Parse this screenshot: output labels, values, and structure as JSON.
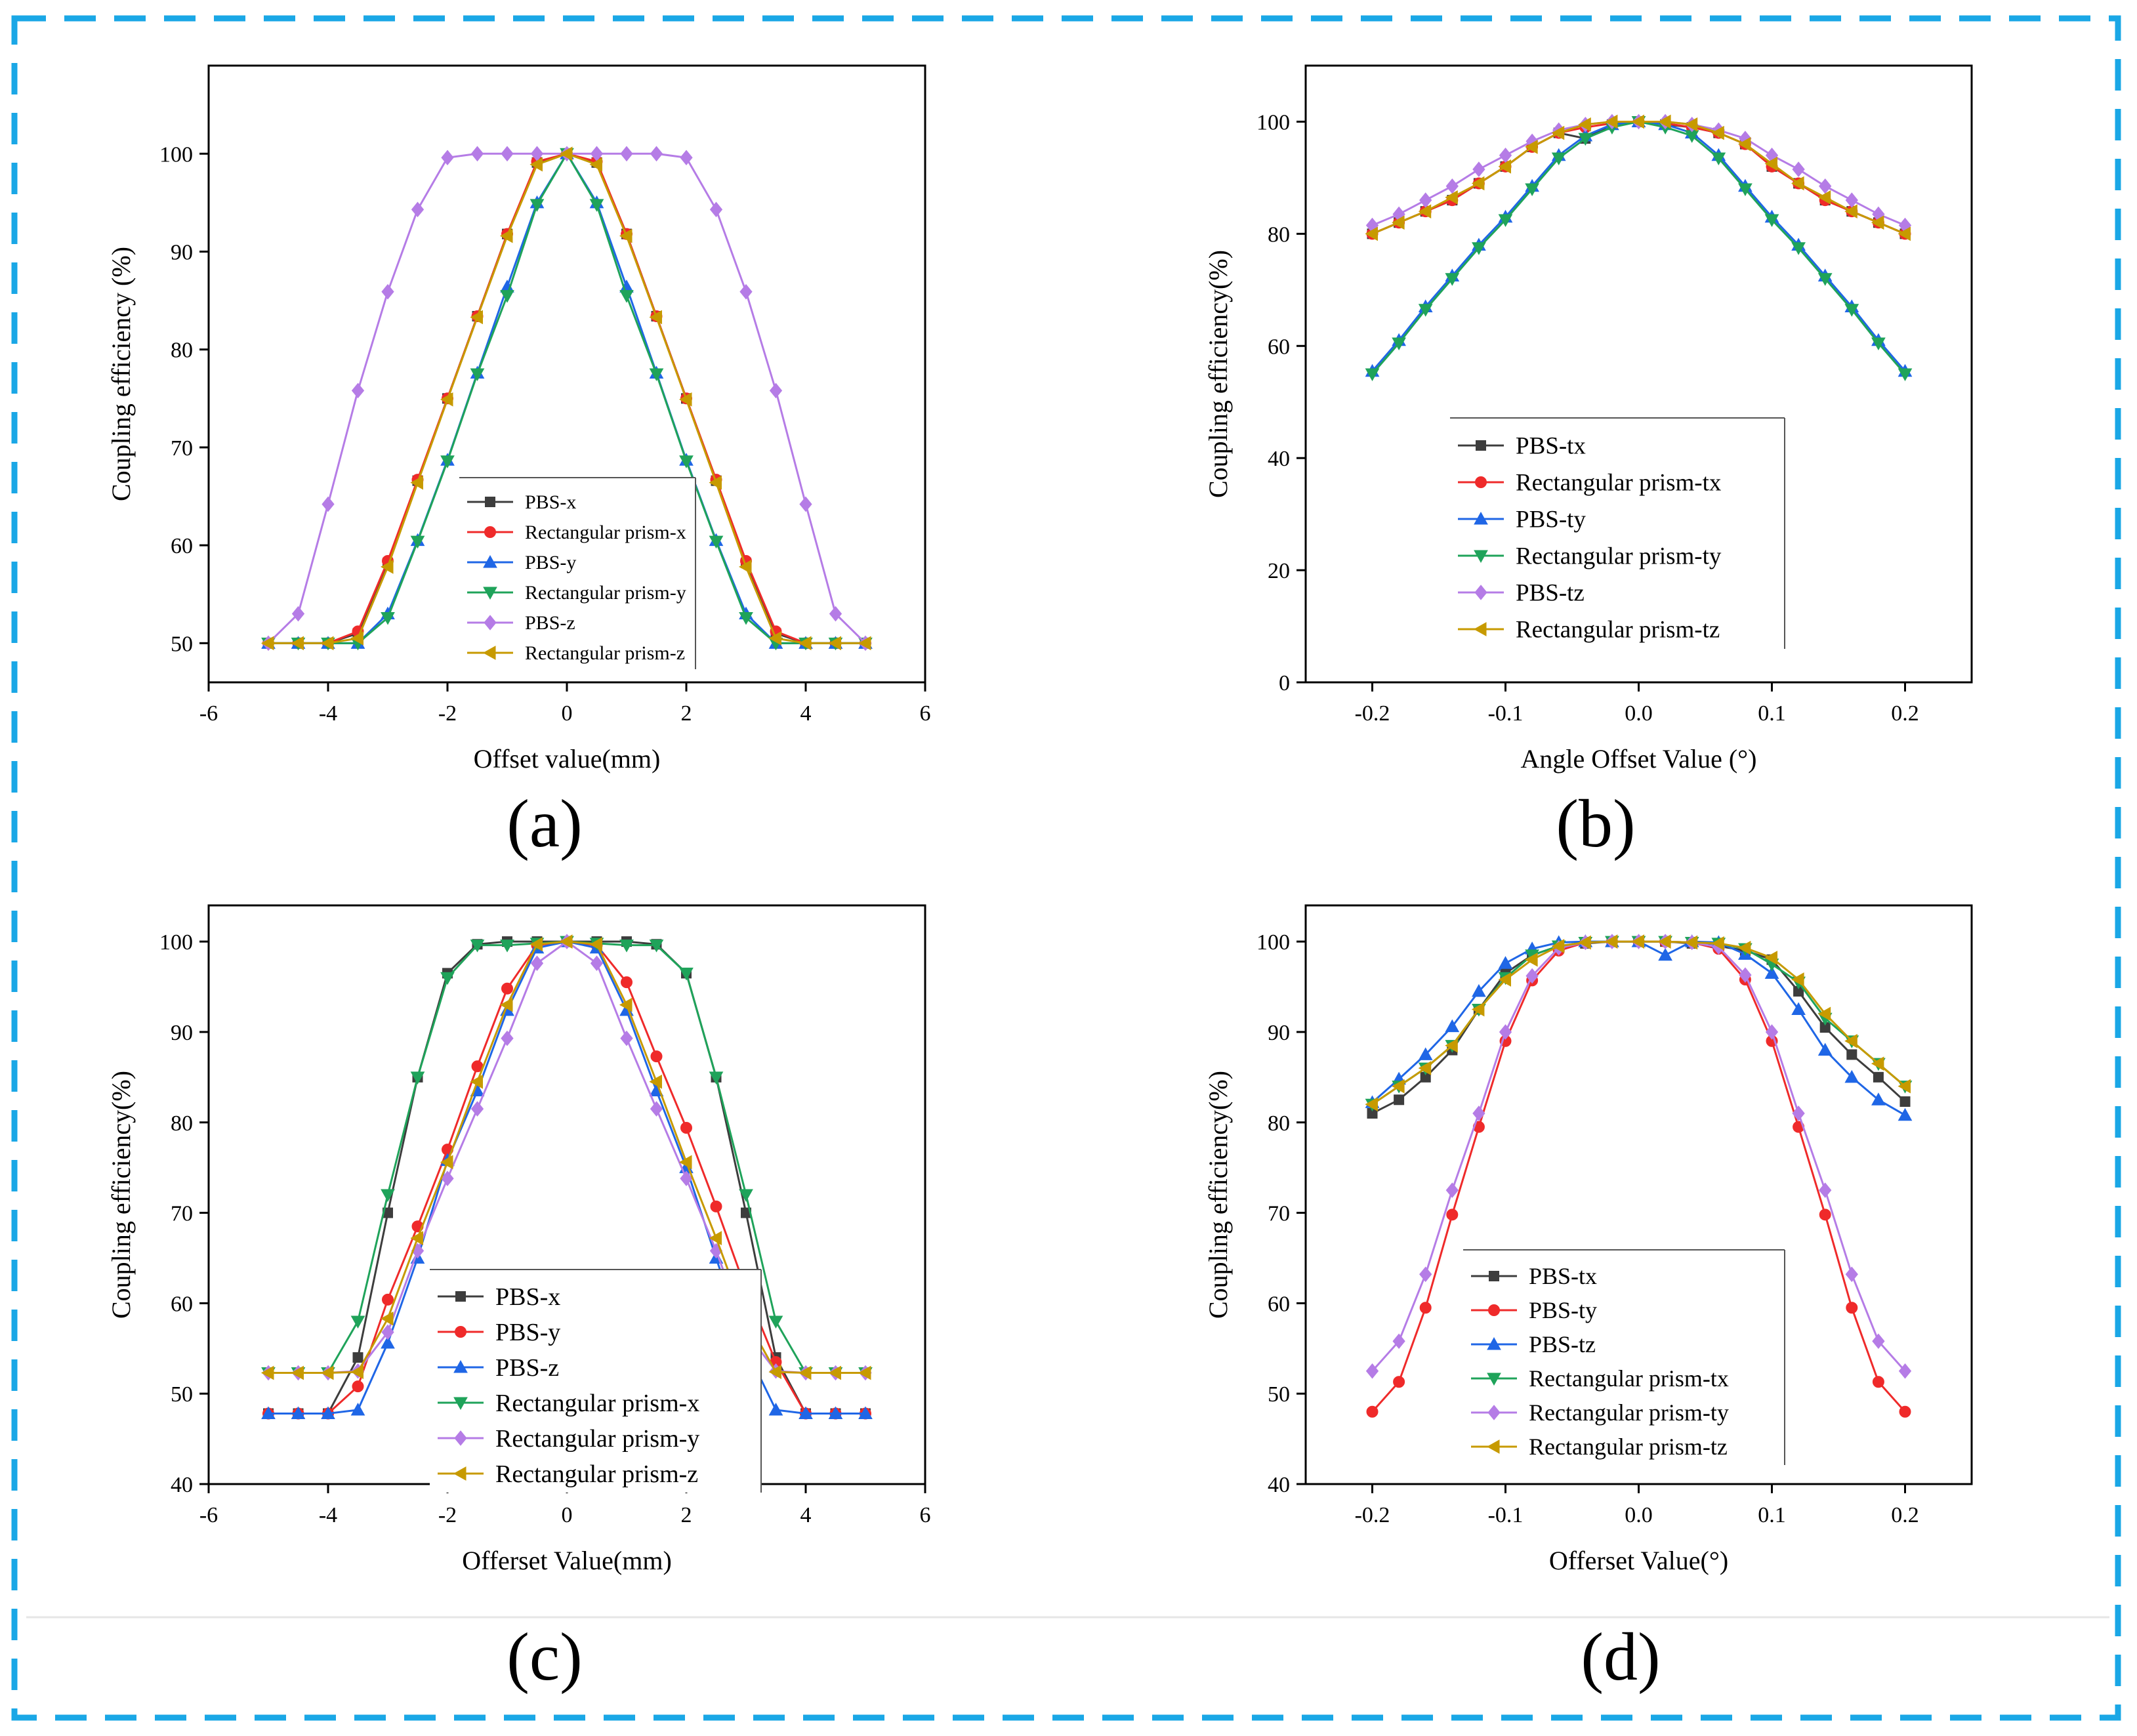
{
  "frame_color": "#1aa7e6",
  "series_colors": {
    "PBS-x": "#3d3d3d",
    "PBS-y": "#ef2a2a",
    "PBS-z": "#1f66e6",
    "Rect-x": "#1fa35a",
    "Rect-y": "#b57ce6",
    "Rect-z": "#c79a00"
  },
  "chart_data": [
    {
      "type": "line",
      "panel_label": "(a)",
      "xlabel": "Offset value(mm)",
      "ylabel": "Coupling efficiency (%)",
      "xlim": [
        -6,
        6
      ],
      "ylim": [
        46,
        109
      ],
      "xticks": [
        -6,
        -4,
        -2,
        0,
        2,
        4,
        6
      ],
      "yticks": [
        50,
        60,
        70,
        80,
        90,
        100
      ],
      "x": [
        -5,
        -4.5,
        -4,
        -3.5,
        -3,
        -2.5,
        -2,
        -1.5,
        -1,
        -0.5,
        0,
        0.5,
        1,
        1.5,
        2,
        2.5,
        3,
        3.5,
        4,
        4.5,
        5
      ],
      "legend": {
        "position": "lower-center",
        "font": 30
      },
      "series": [
        {
          "name": "PBS-x",
          "color": "#3d3d3d",
          "marker": "square",
          "values": [
            50,
            50,
            50,
            51,
            58.2,
            66.6,
            75,
            83.4,
            91.8,
            99.1,
            100,
            99.1,
            91.8,
            83.4,
            75,
            66.6,
            58.2,
            51,
            50,
            50,
            50
          ]
        },
        {
          "name": "Rectangular prism-x",
          "color": "#ef2a2a",
          "marker": "circle",
          "values": [
            50,
            50,
            50,
            51.2,
            58.4,
            66.7,
            75,
            83.4,
            91.8,
            99.2,
            100,
            99.2,
            91.8,
            83.4,
            75,
            66.7,
            58.4,
            51.2,
            50,
            50,
            50
          ]
        },
        {
          "name": "PBS-y",
          "color": "#1f66e6",
          "marker": "triangle-up",
          "values": [
            50,
            50,
            50,
            50,
            53,
            60.5,
            68.7,
            77.6,
            86.4,
            95,
            100,
            95,
            86.4,
            77.6,
            68.7,
            60.5,
            53,
            50,
            50,
            50,
            50
          ]
        },
        {
          "name": "Rectangular prism-y",
          "color": "#1fa35a",
          "marker": "triangle-down",
          "values": [
            50,
            50,
            50,
            50,
            52.6,
            60.4,
            68.6,
            77.5,
            85.5,
            94.8,
            100,
            94.8,
            85.5,
            77.5,
            68.6,
            60.4,
            52.6,
            50,
            50,
            50,
            50
          ]
        },
        {
          "name": "PBS-z",
          "color": "#b57ce6",
          "marker": "diamond",
          "values": [
            50,
            53,
            64.2,
            75.8,
            85.9,
            94.3,
            99.6,
            100,
            100,
            100,
            100,
            100,
            100,
            100,
            99.6,
            94.3,
            85.9,
            75.8,
            64.2,
            53,
            50
          ]
        },
        {
          "name": "Rectangular prism-z",
          "color": "#c79a00",
          "marker": "triangle-left",
          "values": [
            50,
            50,
            50,
            50.5,
            57.8,
            66.4,
            74.9,
            83.3,
            91.6,
            98.9,
            100,
            98.9,
            91.6,
            83.3,
            74.9,
            66.4,
            57.8,
            50.5,
            50,
            50,
            50
          ]
        }
      ]
    },
    {
      "type": "line",
      "panel_label": "(b)",
      "xlabel": "Angle Offset Value (°)",
      "ylabel": "Coupling efficiency(%)",
      "xlim": [
        -0.25,
        0.25
      ],
      "ylim": [
        0,
        110
      ],
      "xticks": [
        -0.2,
        -0.1,
        0.0,
        0.1,
        0.2
      ],
      "xtick_labels": [
        "-0.2",
        "-0.1",
        "0.0",
        "0.1",
        "0.2"
      ],
      "yticks": [
        0,
        20,
        40,
        60,
        80,
        100
      ],
      "x": [
        -0.2,
        -0.18,
        -0.16,
        -0.14,
        -0.12,
        -0.1,
        -0.08,
        -0.06,
        -0.04,
        -0.02,
        0,
        0.02,
        0.04,
        0.06,
        0.08,
        0.1,
        0.12,
        0.14,
        0.16,
        0.18,
        0.2
      ],
      "legend": {
        "position": "center",
        "font": 37
      },
      "series": [
        {
          "name": "PBS-tx",
          "color": "#3d3d3d",
          "marker": "square",
          "values": [
            80,
            82,
            84,
            86,
            89,
            92,
            95.5,
            98,
            97,
            99.5,
            100,
            99.5,
            99,
            98,
            96,
            92,
            89,
            86,
            84,
            82,
            80
          ]
        },
        {
          "name": "Rectangular prism-tx",
          "color": "#ef2a2a",
          "marker": "circle",
          "values": [
            80,
            82,
            84,
            86,
            89,
            92,
            95.5,
            98,
            99,
            99.7,
            100,
            99.7,
            99,
            98,
            96,
            92,
            89,
            86,
            84,
            82,
            80
          ]
        },
        {
          "name": "PBS-ty",
          "color": "#1f66e6",
          "marker": "triangle-up",
          "values": [
            55.5,
            61,
            67,
            72.5,
            78,
            83,
            88.5,
            94,
            97.5,
            99.5,
            100,
            99.5,
            98,
            94,
            88.5,
            83,
            78,
            72.5,
            67,
            61,
            55.5
          ]
        },
        {
          "name": "Rectangular prism-ty",
          "color": "#1fa35a",
          "marker": "triangle-down",
          "values": [
            55,
            60.5,
            66.5,
            72,
            77.5,
            82.5,
            88,
            93.5,
            97,
            99,
            100,
            99,
            97.5,
            93.5,
            88,
            82.5,
            77.5,
            72,
            66.5,
            60.5,
            55
          ]
        },
        {
          "name": "PBS-tz",
          "color": "#b57ce6",
          "marker": "diamond",
          "values": [
            81.5,
            83.5,
            86,
            88.5,
            91.5,
            94,
            96.5,
            98.5,
            99.5,
            100,
            100,
            100,
            99.5,
            98.5,
            97,
            94,
            91.5,
            88.5,
            86,
            83.5,
            81.5
          ]
        },
        {
          "name": "Rectangular prism-tz",
          "color": "#c79a00",
          "marker": "triangle-left",
          "values": [
            80,
            82,
            84,
            86.5,
            89,
            92,
            95.5,
            98,
            99.5,
            100,
            100,
            100,
            99.5,
            98,
            96,
            92.5,
            89,
            86.5,
            84,
            82,
            80
          ]
        }
      ]
    },
    {
      "type": "line",
      "panel_label": "(c)",
      "xlabel": "Offerset Value(mm)",
      "ylabel": "Coupling efficiency(%)",
      "xlim": [
        -6,
        6
      ],
      "ylim": [
        40,
        104
      ],
      "xticks": [
        -6,
        -4,
        -2,
        0,
        2,
        4,
        6
      ],
      "yticks": [
        40,
        50,
        60,
        70,
        80,
        90,
        100
      ],
      "x": [
        -5,
        -4.5,
        -4,
        -3.5,
        -3,
        -2.5,
        -2,
        -1.5,
        -1,
        -0.5,
        0,
        0.5,
        1,
        1.5,
        2,
        2.5,
        3,
        3.5,
        4,
        4.5,
        5
      ],
      "legend": {
        "position": "lower-center",
        "font": 38
      },
      "series": [
        {
          "name": "PBS-x",
          "color": "#3d3d3d",
          "marker": "square",
          "values": [
            47.8,
            47.8,
            47.8,
            54,
            70,
            85,
            96.5,
            99.7,
            100,
            100,
            100,
            100,
            100,
            99.7,
            96.5,
            85,
            70,
            54,
            47.8,
            47.8,
            47.8
          ]
        },
        {
          "name": "PBS-y",
          "color": "#ef2a2a",
          "marker": "circle",
          "values": [
            47.8,
            47.8,
            47.8,
            50.8,
            60.4,
            68.5,
            77,
            86.2,
            94.8,
            99.6,
            100,
            99.6,
            95.5,
            87.3,
            79.4,
            70.7,
            61.5,
            53.5,
            47.8,
            47.8,
            47.8
          ]
        },
        {
          "name": "PBS-z",
          "color": "#1f66e6",
          "marker": "triangle-up",
          "values": [
            47.8,
            47.8,
            47.8,
            48.2,
            55.6,
            65,
            75.8,
            83.5,
            92.4,
            99.3,
            100,
            99.3,
            92.4,
            83.5,
            75,
            65,
            55,
            48.2,
            47.8,
            47.8,
            47.8
          ]
        },
        {
          "name": "Rectangular prism-x",
          "color": "#1fa35a",
          "marker": "triangle-down",
          "values": [
            52.3,
            52.3,
            52.3,
            58,
            72,
            85,
            96,
            99.6,
            99.6,
            99.8,
            100,
            99.8,
            99.6,
            99.6,
            96.5,
            85,
            72,
            58,
            52.3,
            52.3,
            52.3
          ]
        },
        {
          "name": "Rectangular prism-y",
          "color": "#b57ce6",
          "marker": "diamond",
          "values": [
            52.3,
            52.3,
            52.3,
            52.5,
            56.8,
            65.8,
            73.8,
            81.5,
            89.3,
            97.6,
            100,
            97.6,
            89.3,
            81.5,
            73.8,
            65.8,
            56.8,
            52.5,
            52.3,
            52.3,
            52.3
          ]
        },
        {
          "name": "Rectangular prism-z",
          "color": "#c79a00",
          "marker": "triangle-left",
          "values": [
            52.3,
            52.3,
            52.3,
            52.4,
            58.3,
            67.2,
            75.6,
            84.5,
            93,
            99.7,
            100,
            99.7,
            93,
            84.5,
            75.6,
            67.2,
            58.3,
            52.4,
            52.3,
            52.3,
            52.3
          ]
        }
      ]
    },
    {
      "type": "line",
      "panel_label": "(d)",
      "xlabel": "Offerset Value(°)",
      "ylabel": "Coupling efficiency(%)",
      "xlim": [
        -0.25,
        0.25
      ],
      "ylim": [
        40,
        104
      ],
      "xticks": [
        -0.2,
        -0.1,
        0.0,
        0.1,
        0.2
      ],
      "xtick_labels": [
        "-0.2",
        "-0.1",
        "0.0",
        "0.1",
        "0.2"
      ],
      "yticks": [
        40,
        50,
        60,
        70,
        80,
        90,
        100
      ],
      "x": [
        -0.2,
        -0.18,
        -0.16,
        -0.14,
        -0.12,
        -0.1,
        -0.08,
        -0.06,
        -0.04,
        -0.02,
        0,
        0.02,
        0.04,
        0.06,
        0.08,
        0.1,
        0.12,
        0.14,
        0.16,
        0.18,
        0.2
      ],
      "legend": {
        "position": "lower-center",
        "font": 36
      },
      "series": [
        {
          "name": "PBS-tx",
          "color": "#3d3d3d",
          "marker": "square",
          "values": [
            81,
            82.5,
            85,
            88,
            92.5,
            96.5,
            98.5,
            99.5,
            99.8,
            100,
            100,
            100,
            99.8,
            99.5,
            99,
            98,
            94.5,
            90.5,
            87.5,
            85,
            82.3
          ]
        },
        {
          "name": "PBS-ty",
          "color": "#ef2a2a",
          "marker": "circle",
          "values": [
            48,
            51.3,
            59.5,
            69.8,
            79.5,
            89,
            95.7,
            99,
            99.9,
            100,
            100,
            100,
            99.9,
            99.2,
            95.8,
            89,
            79.5,
            69.8,
            59.5,
            51.3,
            48
          ]
        },
        {
          "name": "PBS-tz",
          "color": "#1f66e6",
          "marker": "triangle-up",
          "values": [
            82.2,
            84.8,
            87.5,
            90.6,
            94.5,
            97.6,
            99.2,
            99.9,
            100,
            100,
            100,
            98.5,
            100,
            99.9,
            98.6,
            96.5,
            92.5,
            88,
            85,
            82.5,
            80.8
          ]
        },
        {
          "name": "Rectangular prism-tx",
          "color": "#1fa35a",
          "marker": "triangle-down",
          "values": [
            82,
            84,
            86,
            88.5,
            92.5,
            96,
            98.5,
            99.5,
            99.9,
            100,
            100,
            100,
            99.9,
            99.8,
            99.2,
            97.5,
            95.5,
            91.5,
            89,
            86.5,
            84
          ]
        },
        {
          "name": "Rectangular prism-ty",
          "color": "#b57ce6",
          "marker": "diamond",
          "values": [
            52.5,
            55.8,
            63.2,
            72.5,
            81,
            90,
            96.2,
            99.3,
            99.9,
            100,
            100,
            100,
            99.9,
            99.4,
            96.3,
            90,
            81,
            72.5,
            63.2,
            55.8,
            52.5
          ]
        },
        {
          "name": "Rectangular prism-tz",
          "color": "#c79a00",
          "marker": "triangle-left",
          "values": [
            82,
            84,
            86,
            88.5,
            92.5,
            95.8,
            98,
            99.5,
            99.9,
            100,
            100,
            100,
            99.9,
            99.8,
            99.3,
            98.2,
            95.8,
            92,
            89,
            86.5,
            84
          ]
        }
      ]
    }
  ]
}
